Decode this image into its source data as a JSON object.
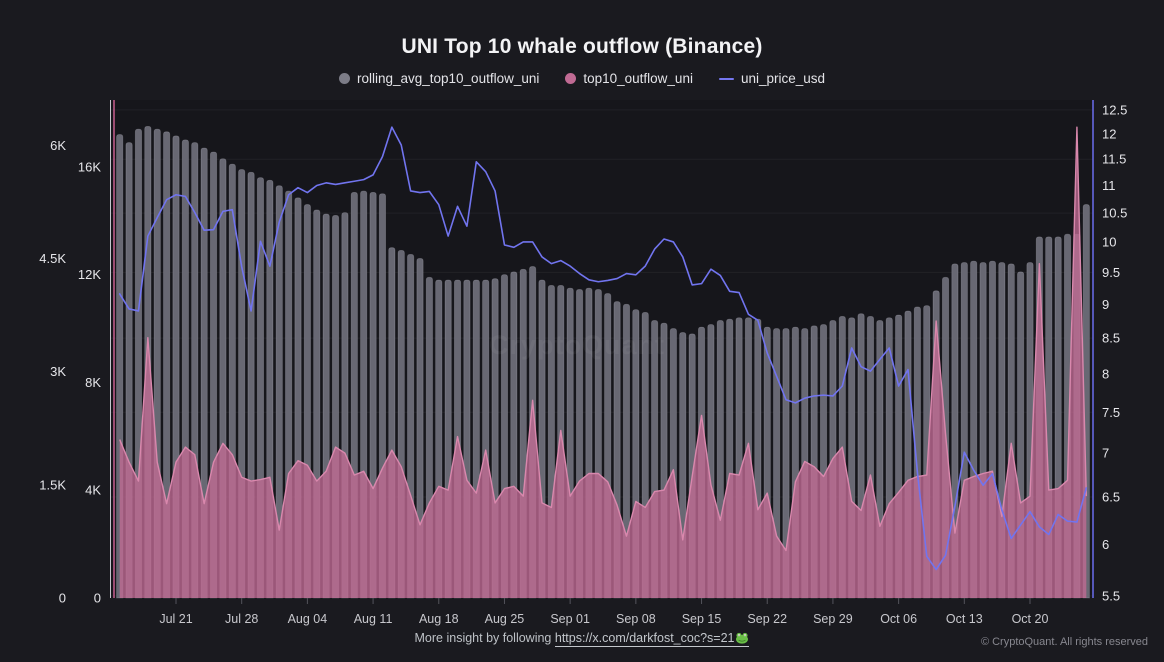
{
  "watermark": "CryptoQuant",
  "footer": {
    "prefix": "More insight by following ",
    "link_text": "https://x.com/darkfost_coc?s=21",
    "emoji": "frog",
    "copyright": "© CryptoQuant. All rights reserved"
  },
  "colors": {
    "background": "#1a1a1f",
    "plot_background": "#16161b",
    "gridline": "rgba(255,255,255,0.05)",
    "axis_text": "#e6e6ea",
    "x_tick_text": "#c8c8cd",
    "tick_mark": "#53535b",
    "gray_bar": "#686873",
    "gray_bar_edge": "rgba(205,205,215,0.25)",
    "pink_fill": "rgba(193,106,148,0.78)",
    "pink_line": "#d988ad",
    "pink_axis_line": "#c75e90",
    "gray_axis_line": "#c6c6cd",
    "price_line": "#7174ef",
    "price_axis_line": "#6b6ded"
  },
  "chart_data": {
    "type": "combo",
    "title": "UNI Top 10 whale outflow (Binance)",
    "legend": [
      {
        "label": "rolling_avg_top10_outflow_uni",
        "color": "#7c7c87",
        "marker": "dot"
      },
      {
        "label": "top10_outflow_uni",
        "color": "#c06a93",
        "marker": "dot"
      },
      {
        "label": "uni_price_usd",
        "color": "#7577f0",
        "marker": "line"
      }
    ],
    "x": {
      "dates": [
        "Jul 15",
        "Jul 16",
        "Jul 17",
        "Jul 18",
        "Jul 19",
        "Jul 20",
        "Jul 21",
        "Jul 22",
        "Jul 23",
        "Jul 24",
        "Jul 25",
        "Jul 26",
        "Jul 27",
        "Jul 28",
        "Jul 29",
        "Jul 30",
        "Jul 31",
        "Aug 01",
        "Aug 02",
        "Aug 03",
        "Aug 04",
        "Aug 05",
        "Aug 06",
        "Aug 07",
        "Aug 08",
        "Aug 09",
        "Aug 10",
        "Aug 11",
        "Aug 12",
        "Aug 13",
        "Aug 14",
        "Aug 15",
        "Aug 16",
        "Aug 17",
        "Aug 18",
        "Aug 19",
        "Aug 20",
        "Aug 21",
        "Aug 22",
        "Aug 23",
        "Aug 24",
        "Aug 25",
        "Aug 26",
        "Aug 27",
        "Aug 28",
        "Aug 29",
        "Aug 30",
        "Aug 31",
        "Sep 01",
        "Sep 02",
        "Sep 03",
        "Sep 04",
        "Sep 05",
        "Sep 06",
        "Sep 07",
        "Sep 08",
        "Sep 09",
        "Sep 10",
        "Sep 11",
        "Sep 12",
        "Sep 13",
        "Sep 14",
        "Sep 15",
        "Sep 16",
        "Sep 17",
        "Sep 18",
        "Sep 19",
        "Sep 20",
        "Sep 21",
        "Sep 22",
        "Sep 23",
        "Sep 24",
        "Sep 25",
        "Sep 26",
        "Sep 27",
        "Sep 28",
        "Sep 29",
        "Sep 30",
        "Oct 01",
        "Oct 02",
        "Oct 03",
        "Oct 04",
        "Oct 05",
        "Oct 06",
        "Oct 07",
        "Oct 08",
        "Oct 09",
        "Oct 10",
        "Oct 11",
        "Oct 12",
        "Oct 13",
        "Oct 14",
        "Oct 15",
        "Oct 16",
        "Oct 17",
        "Oct 18",
        "Oct 19",
        "Oct 20",
        "Oct 21",
        "Oct 22",
        "Oct 23",
        "Oct 24",
        "Oct 25",
        "Oct 26"
      ],
      "tick_indices": [
        6,
        13,
        20,
        27,
        34,
        41,
        48,
        55,
        62,
        69,
        76,
        83,
        90,
        97
      ],
      "tick_labels": [
        "Jul 21",
        "Jul 28",
        "Aug 04",
        "Aug 11",
        "Aug 18",
        "Aug 25",
        "Sep 01",
        "Sep 08",
        "Sep 15",
        "Sep 22",
        "Sep 29",
        "Oct 06",
        "Oct 13",
        "Oct 20"
      ]
    },
    "axes": {
      "left_outer": {
        "series": "top10_outflow_uni",
        "labels": [
          "0",
          "1.5K",
          "3K",
          "4.5K",
          "6K"
        ],
        "label_values": [
          0,
          1500,
          3000,
          4500,
          6000
        ],
        "range": [
          0,
          6600
        ]
      },
      "left_inner": {
        "series": "rolling_avg_top10_outflow_uni",
        "labels": [
          "0",
          "4K",
          "8K",
          "12K",
          "16K"
        ],
        "label_values": [
          0,
          4000,
          8000,
          12000,
          16000
        ],
        "range": [
          0,
          18480
        ]
      },
      "right": {
        "series": "uni_price_usd",
        "scale": "log",
        "range": [
          5.48,
          12.71
        ],
        "labels": [
          "5.5",
          "6",
          "6.5",
          "7",
          "7.5",
          "8",
          "8.5",
          "9",
          "9.5",
          "10",
          "10.5",
          "11",
          "11.5",
          "12",
          "12.5"
        ],
        "label_values": [
          5.5,
          6,
          6.5,
          7,
          7.5,
          8,
          8.5,
          9,
          9.5,
          10,
          10.5,
          11,
          11.5,
          12,
          12.5
        ],
        "gridline_values": [
          5.5,
          6.5,
          7.5,
          8.5,
          9.5,
          10.5,
          11.5,
          12.5
        ]
      }
    },
    "series": [
      {
        "name": "rolling_avg_top10_outflow_uni",
        "type": "bar",
        "axis": "left_inner",
        "values": [
          17200,
          16900,
          17400,
          17500,
          17400,
          17300,
          17150,
          17000,
          16900,
          16700,
          16550,
          16300,
          16100,
          15900,
          15800,
          15600,
          15500,
          15300,
          15100,
          14850,
          14600,
          14400,
          14250,
          14200,
          14300,
          15050,
          15100,
          15050,
          15000,
          13000,
          12900,
          12750,
          12600,
          11900,
          11800,
          11800,
          11800,
          11800,
          11800,
          11800,
          11850,
          12000,
          12100,
          12200,
          12300,
          11800,
          11600,
          11600,
          11500,
          11450,
          11500,
          11450,
          11300,
          11000,
          10900,
          10700,
          10600,
          10300,
          10200,
          10000,
          9850,
          9800,
          10050,
          10150,
          10300,
          10350,
          10400,
          10400,
          10350,
          10050,
          10000,
          10000,
          10050,
          10000,
          10100,
          10150,
          10300,
          10450,
          10400,
          10550,
          10450,
          10300,
          10400,
          10500,
          10650,
          10800,
          10850,
          11400,
          11900,
          12400,
          12450,
          12500,
          12450,
          12500,
          12450,
          12400,
          12100,
          12450,
          13400,
          13400,
          13400,
          13500,
          13500,
          14600
        ]
      },
      {
        "name": "top10_outflow_uni",
        "type": "area",
        "axis": "left_outer",
        "values": [
          2100,
          1800,
          1550,
          3450,
          1800,
          1250,
          1800,
          2000,
          1900,
          1250,
          1800,
          2050,
          1900,
          1600,
          1550,
          1570,
          1600,
          900,
          1650,
          1820,
          1760,
          1550,
          1680,
          2000,
          1920,
          1630,
          1680,
          1450,
          1720,
          1960,
          1740,
          1360,
          970,
          1260,
          1480,
          1430,
          2140,
          1560,
          1390,
          1960,
          1260,
          1450,
          1480,
          1350,
          2620,
          1260,
          1200,
          2220,
          1350,
          1550,
          1650,
          1650,
          1540,
          1230,
          820,
          1280,
          1200,
          1410,
          1430,
          1700,
          770,
          1610,
          2420,
          1500,
          1030,
          1650,
          1630,
          2050,
          1170,
          1390,
          820,
          630,
          1540,
          1810,
          1740,
          1610,
          1850,
          2000,
          1280,
          1160,
          1630,
          950,
          1250,
          1400,
          1560,
          1610,
          1630,
          3670,
          2180,
          860,
          1560,
          1610,
          1650,
          1680,
          1080,
          2050,
          1260,
          1350,
          4430,
          1430,
          1450,
          1560,
          6240,
          1350
        ]
      },
      {
        "name": "uni_price_usd",
        "type": "line",
        "axis": "right",
        "values": [
          9.16,
          8.93,
          8.9,
          10.1,
          10.42,
          10.74,
          10.83,
          10.8,
          10.51,
          10.2,
          10.21,
          10.53,
          10.56,
          9.59,
          8.9,
          10.01,
          9.6,
          10.34,
          10.83,
          10.96,
          10.87,
          11.0,
          11.05,
          11.02,
          11.05,
          11.08,
          11.11,
          11.2,
          11.55,
          12.14,
          11.78,
          10.9,
          10.87,
          10.89,
          10.65,
          10.1,
          10.62,
          10.27,
          11.45,
          11.26,
          10.9,
          9.95,
          9.91,
          10.0,
          10.0,
          9.75,
          9.64,
          9.69,
          9.6,
          9.48,
          9.38,
          9.35,
          9.37,
          9.4,
          9.48,
          9.46,
          9.6,
          9.88,
          10.05,
          10.0,
          9.75,
          9.3,
          9.32,
          9.55,
          9.45,
          9.2,
          9.18,
          8.85,
          8.76,
          8.29,
          7.97,
          7.66,
          7.62,
          7.68,
          7.71,
          7.72,
          7.71,
          7.84,
          8.36,
          8.1,
          8.04,
          8.2,
          8.36,
          7.84,
          8.06,
          6.78,
          5.88,
          5.75,
          5.89,
          6.4,
          7.01,
          6.8,
          6.63,
          6.76,
          6.36,
          6.06,
          6.2,
          6.34,
          6.18,
          6.1,
          6.31,
          6.24,
          6.23,
          6.6
        ]
      }
    ]
  }
}
